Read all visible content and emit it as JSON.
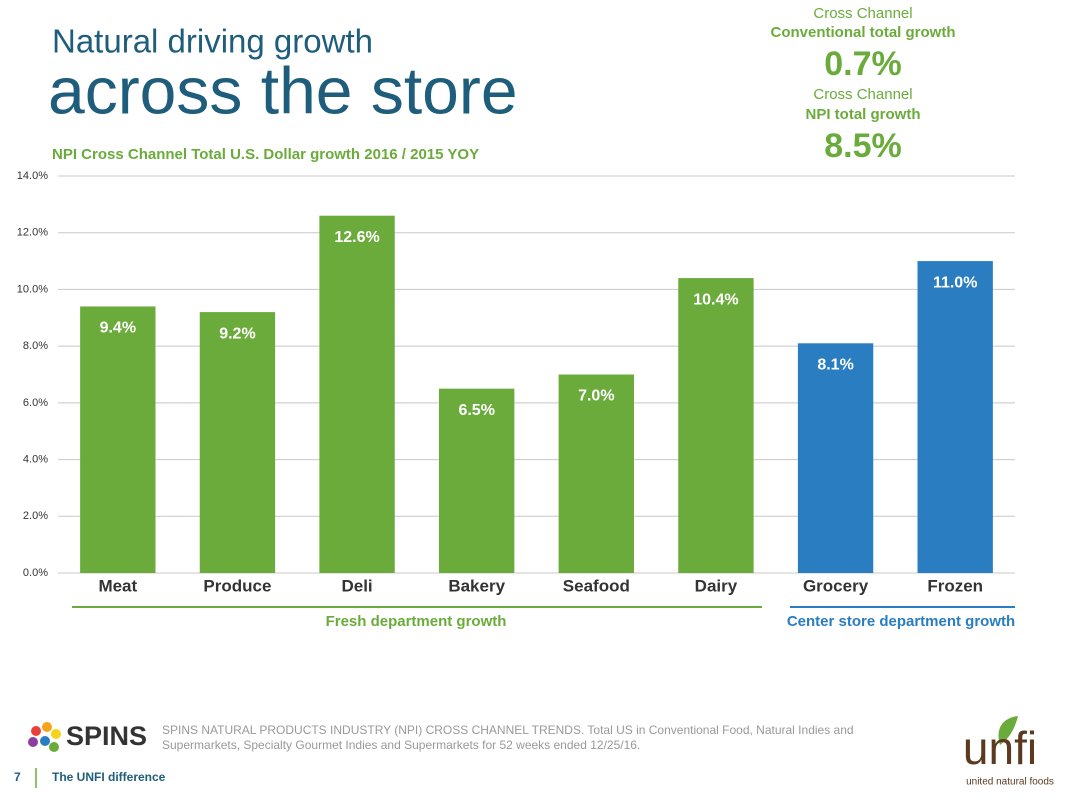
{
  "slide": {
    "title_line1": "Natural driving growth",
    "title_line2": "across the store",
    "subtitle": "NPI Cross Channel Total U.S. Dollar growth 2016 / 2015 YOY",
    "stat1": {
      "line1": "Cross Channel",
      "line2": "Conventional total growth",
      "value": "0.7%"
    },
    "stat2": {
      "line1": "Cross Channel",
      "line2": "NPI total growth",
      "value": "8.5%"
    },
    "group_labels": [
      "Fresh department growth",
      "Center store department growth"
    ],
    "source_logo": "SPINS",
    "source_lines": [
      "SPINS NATURAL PRODUCTS INDUSTRY (NPI) CROSS CHANNEL TRENDS. Total US in Conventional Food, Natural Indies and",
      "Supermarkets,  Specialty Gourmet Indies and Supermarkets for 52 weeks ended 12/25/16."
    ],
    "page_number": "7",
    "footer": "The UNFI difference",
    "brand": "unfi",
    "brand_tagline": "united natural foods"
  },
  "chart_data": {
    "type": "bar",
    "categories": [
      "Meat",
      "Produce",
      "Deli",
      "Bakery",
      "Seafood",
      "Dairy",
      "Grocery",
      "Frozen"
    ],
    "values": [
      9.4,
      9.2,
      12.6,
      6.5,
      7.0,
      10.4,
      8.1,
      11.0
    ],
    "value_labels": [
      "9.4%",
      "9.2%",
      "12.6%",
      "6.5%",
      "7.0%",
      "10.4%",
      "8.1%",
      "11.0%"
    ],
    "colors": [
      "#6aab3b",
      "#6aab3b",
      "#6aab3b",
      "#6aab3b",
      "#6aab3b",
      "#6aab3b",
      "#2a7dc1",
      "#2a7dc1"
    ],
    "ylim": [
      0,
      14
    ],
    "yticks": [
      {
        "value": 0,
        "label": "0.0%"
      },
      {
        "value": 2,
        "label": "2.0%"
      },
      {
        "value": 4,
        "label": "4.0%"
      },
      {
        "value": 6,
        "label": "6.0%"
      },
      {
        "value": 8,
        "label": "8.0%"
      },
      {
        "value": 10,
        "label": "10.0%"
      },
      {
        "value": 12,
        "label": "12.0%"
      },
      {
        "value": 14,
        "label": "14.0%"
      }
    ],
    "grid": true
  }
}
